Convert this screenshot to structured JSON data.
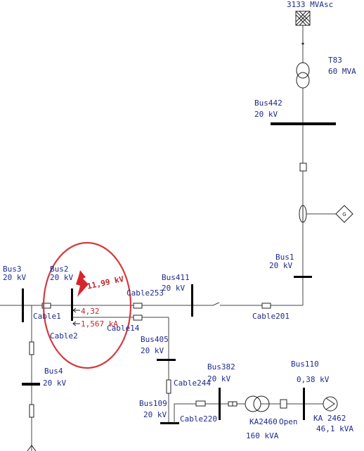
{
  "source": {
    "label": "3133 MVAsc"
  },
  "transformers": [
    {
      "id": "T83",
      "name": "T83",
      "rating": "60 MVA"
    },
    {
      "id": "KA2460",
      "name": "KA2460",
      "rating": "160 kVA"
    }
  ],
  "buses": [
    {
      "id": "bus442",
      "name": "Bus442",
      "voltage": "20 kV"
    },
    {
      "id": "bus1",
      "name": "Bus1",
      "voltage": "20 kV"
    },
    {
      "id": "bus3",
      "name": "Bus3",
      "voltage": "20 kV"
    },
    {
      "id": "bus2",
      "name": "Bus2",
      "voltage": "20 kV"
    },
    {
      "id": "bus411",
      "name": "Bus411",
      "voltage": "20 kV"
    },
    {
      "id": "bus4",
      "name": "Bus4",
      "voltage": "20 kV"
    },
    {
      "id": "bus405",
      "name": "Bus405",
      "voltage": "20 kV"
    },
    {
      "id": "bus382",
      "name": "Bus382",
      "voltage": "20 kV"
    },
    {
      "id": "bus110",
      "name": "Bus110",
      "voltage": "0,38 kV"
    },
    {
      "id": "bus109",
      "name": "Bus109",
      "voltage": "20 kV"
    }
  ],
  "cables": {
    "cable1": "Cable1",
    "cable2": "Cable2",
    "cable253": "Cable253",
    "cable14": "Cable14",
    "cable201": "Cable201",
    "cable244": "Cable244",
    "cable220": "Cable220"
  },
  "fault": {
    "voltage": "11,99 kV",
    "current_a": "4,32",
    "current_b": "1,567 kA"
  },
  "switch": {
    "label": "Open"
  },
  "load": {
    "name": "KA 2462",
    "rating": "46,1 kVA"
  },
  "generator": {
    "symbol": "G"
  },
  "colors": {
    "line": "#444444",
    "bus": "#000000",
    "label": "#1f2a8c",
    "fault": "#c0262b",
    "highlight_circle": "#d6383e"
  }
}
